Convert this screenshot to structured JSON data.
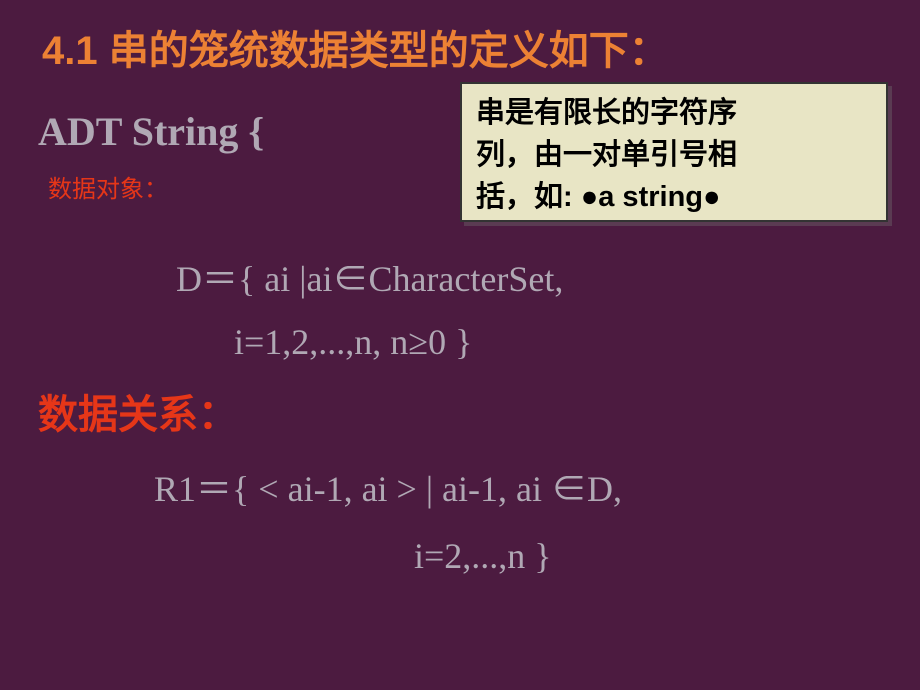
{
  "title": "4.1  串的笼统数据类型的定义如下：",
  "adt_heading": "ADT String {",
  "data_object_label": "数据对象：",
  "callout_line1": "串是有限长的字符序",
  "callout_line2": "列，由一对单引号相",
  "callout_line3_pre": "括，如: ",
  "callout_line3_mid": "a string",
  "formula_d_line1": "D＝{ ai |ai∈CharacterSet,",
  "formula_d_line2": "i=1,2,...,n,       n≥0 }",
  "data_relation_label": "数据关系：",
  "formula_r_line1": "R1＝{ < ai-1, ai > | ai-1, ai ∈D,",
  "formula_r_line2": "i=2,...,n }",
  "colors": {
    "background": "#4c1b40",
    "title": "#ec8134",
    "body_text": "#b0a8b4",
    "accent_red": "#e63618",
    "callout_bg": "#e8e5c5",
    "callout_text": "#000000",
    "callout_shadow": "#5a3b52"
  }
}
